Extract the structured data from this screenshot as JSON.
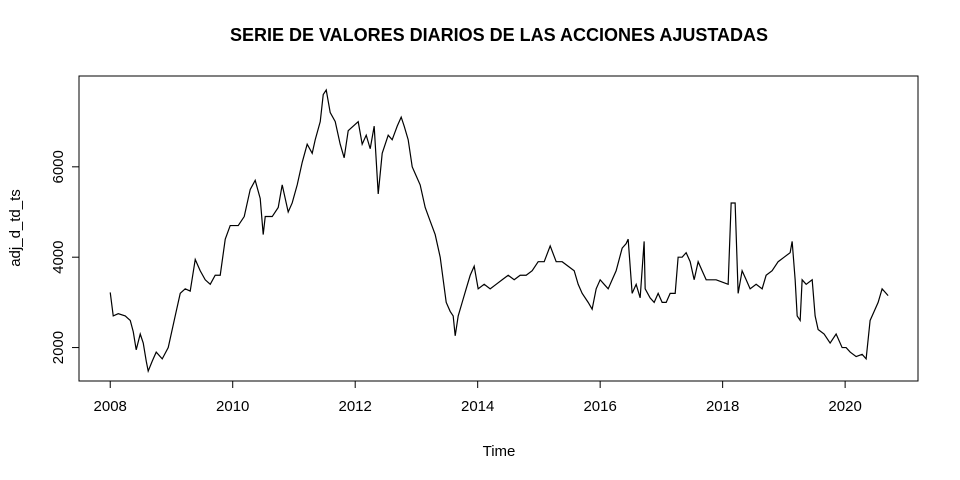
{
  "chart_data": {
    "type": "line",
    "title": "SERIE DE VALORES DIARIOS DE LAS ACCIONES AJUSTADAS",
    "x_label": "Time",
    "y_label": "adj_d_td_ts",
    "xlim": [
      2007.49,
      2021.19
    ],
    "ylim": [
      1260,
      8010
    ],
    "xticks": [
      2008,
      2010,
      2012,
      2014,
      2016,
      2018,
      2020
    ],
    "yticks": [
      2000,
      4000,
      6000
    ],
    "series": [
      {
        "color": "#000000",
        "x": [
          2008.0,
          2008.049,
          2008.131,
          2008.245,
          2008.327,
          2008.376,
          2008.424,
          2008.49,
          2008.539,
          2008.588,
          2008.62,
          2008.686,
          2008.751,
          2008.849,
          2008.947,
          2009.061,
          2009.143,
          2009.224,
          2009.306,
          2009.388,
          2009.469,
          2009.551,
          2009.633,
          2009.714,
          2009.796,
          2009.878,
          2009.959,
          2010.09,
          2010.188,
          2010.286,
          2010.367,
          2010.449,
          2010.498,
          2010.531,
          2010.645,
          2010.743,
          2010.808,
          2010.906,
          2010.971,
          2011.053,
          2011.135,
          2011.216,
          2011.298,
          2011.347,
          2011.429,
          2011.478,
          2011.527,
          2011.592,
          2011.674,
          2011.755,
          2011.82,
          2011.886,
          2011.967,
          2012.049,
          2012.114,
          2012.18,
          2012.245,
          2012.31,
          2012.376,
          2012.441,
          2012.539,
          2012.604,
          2012.686,
          2012.751,
          2012.8,
          2012.865,
          2012.931,
          2012.996,
          2013.061,
          2013.143,
          2013.224,
          2013.306,
          2013.388,
          2013.437,
          2013.486,
          2013.551,
          2013.6,
          2013.633,
          2013.682,
          2013.747,
          2013.812,
          2013.878,
          2013.943,
          2014.008,
          2014.106,
          2014.204,
          2014.302,
          2014.4,
          2014.498,
          2014.596,
          2014.694,
          2014.792,
          2014.89,
          2014.988,
          2015.086,
          2015.184,
          2015.282,
          2015.38,
          2015.478,
          2015.576,
          2015.641,
          2015.706,
          2015.804,
          2015.869,
          2015.935,
          2016.0,
          2016.065,
          2016.131,
          2016.196,
          2016.261,
          2016.359,
          2016.424,
          2016.457,
          2016.522,
          2016.588,
          2016.653,
          2016.718,
          2016.735,
          2016.816,
          2016.882,
          2016.947,
          2017.012,
          2017.078,
          2017.143,
          2017.225,
          2017.273,
          2017.339,
          2017.404,
          2017.47,
          2017.535,
          2017.6,
          2017.665,
          2017.731,
          2017.796,
          2017.894,
          2017.992,
          2018.09,
          2018.139,
          2018.204,
          2018.253,
          2018.318,
          2018.384,
          2018.449,
          2018.547,
          2018.645,
          2018.71,
          2018.808,
          2018.906,
          2019.004,
          2019.102,
          2019.135,
          2019.184,
          2019.217,
          2019.266,
          2019.298,
          2019.364,
          2019.462,
          2019.51,
          2019.559,
          2019.657,
          2019.755,
          2019.853,
          2019.951,
          2020.016,
          2020.082,
          2020.18,
          2020.278,
          2020.343,
          2020.408,
          2020.474,
          2020.539,
          2020.604,
          2020.67,
          2020.702
        ],
        "values": [
          3220,
          2700,
          2750,
          2700,
          2600,
          2350,
          1950,
          2300,
          2100,
          1700,
          1480,
          1700,
          1900,
          1750,
          2000,
          2700,
          3200,
          3300,
          3250,
          3950,
          3700,
          3500,
          3400,
          3600,
          3600,
          4400,
          4700,
          4700,
          4900,
          5500,
          5700,
          5300,
          4500,
          4900,
          4900,
          5100,
          5600,
          5000,
          5200,
          5600,
          6100,
          6500,
          6300,
          6600,
          7000,
          7600,
          7700,
          7200,
          7000,
          6500,
          6200,
          6800,
          6900,
          7000,
          6500,
          6700,
          6400,
          6900,
          5400,
          6300,
          6700,
          6600,
          6900,
          7100,
          6900,
          6600,
          6000,
          5800,
          5600,
          5100,
          4800,
          4500,
          4000,
          3500,
          3000,
          2800,
          2700,
          2260,
          2700,
          3000,
          3300,
          3600,
          3800,
          3300,
          3400,
          3300,
          3400,
          3500,
          3600,
          3500,
          3600,
          3600,
          3700,
          3900,
          3900,
          4250,
          3900,
          3900,
          3800,
          3700,
          3400,
          3200,
          3000,
          2850,
          3300,
          3500,
          3400,
          3300,
          3500,
          3700,
          4200,
          4300,
          4400,
          3200,
          3400,
          3100,
          4350,
          3300,
          3100,
          3000,
          3200,
          3000,
          3000,
          3200,
          3200,
          4000,
          4000,
          4100,
          3900,
          3500,
          3900,
          3700,
          3500,
          3500,
          3500,
          3450,
          3400,
          5200,
          5200,
          3200,
          3700,
          3500,
          3300,
          3400,
          3300,
          3600,
          3700,
          3900,
          4000,
          4100,
          4350,
          3500,
          2700,
          2600,
          3500,
          3400,
          3500,
          2700,
          2400,
          2300,
          2100,
          2300,
          2000,
          2000,
          1900,
          1800,
          1850,
          1750,
          2600,
          2800,
          3000,
          3300,
          3200,
          3150
        ]
      }
    ]
  }
}
